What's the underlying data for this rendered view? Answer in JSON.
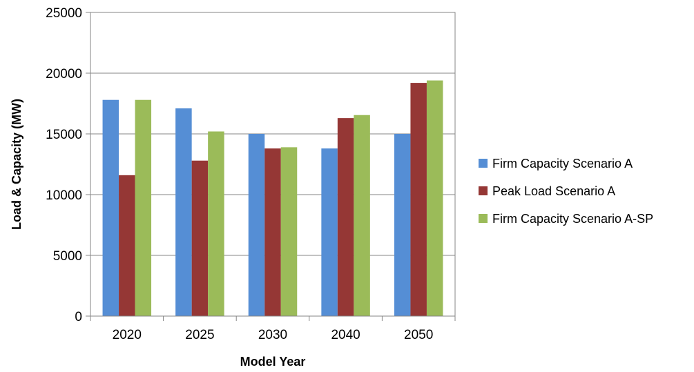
{
  "chart_data": {
    "type": "bar",
    "categories": [
      "2020",
      "2025",
      "2030",
      "2040",
      "2050"
    ],
    "series": [
      {
        "name": "Firm Capacity Scenario A",
        "color": "#558ED5",
        "values": [
          17800,
          17100,
          15000,
          13800,
          15000
        ]
      },
      {
        "name": "Peak Load Scenario A",
        "color": "#953735",
        "values": [
          11600,
          12800,
          13800,
          16300,
          19200
        ]
      },
      {
        "name": "Firm Capacity Scenario A-SP",
        "color": "#9BBB59",
        "values": [
          17800,
          15200,
          13900,
          16550,
          19400
        ]
      }
    ],
    "xlabel": "Model Year",
    "ylabel": "Load & Capacity  (MW)",
    "ylim": [
      0,
      25000
    ],
    "yticks": [
      0,
      5000,
      10000,
      15000,
      20000,
      25000
    ],
    "grid": true,
    "legend_position": "right"
  }
}
